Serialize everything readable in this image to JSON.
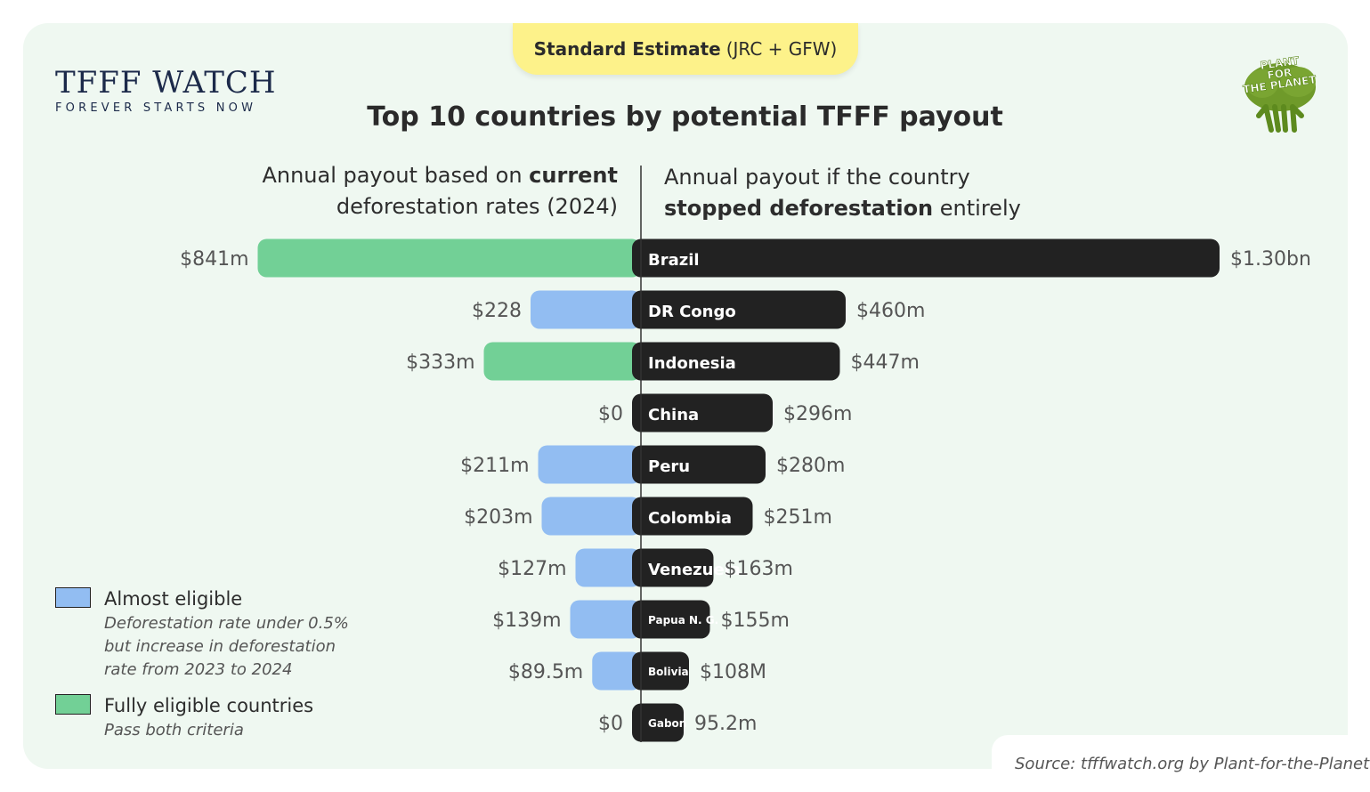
{
  "header": {
    "tag_bold": "Standard Estimate",
    "tag_rest": "(JRC + GFW)",
    "logo_main": "TFFF WATCH",
    "logo_sub": "FOREVER STARTS NOW",
    "partner_logo": {
      "line1": "PLANT",
      "line2": "FOR",
      "line3": "THE PLANET",
      "icon": "tree-people-icon"
    }
  },
  "chart_data": {
    "type": "bar",
    "title": "Top 10 countries by potential TFFF payout",
    "left_subtitle": {
      "pre": "Annual payout based on ",
      "bold": "current",
      "line2": "deforestation rates (2024)"
    },
    "right_subtitle": {
      "line1": "Annual payout if the country",
      "bold": "stopped deforestation",
      "post": " entirely"
    },
    "categories": [
      "Brazil",
      "DR Congo",
      "Indonesia",
      "China",
      "Peru",
      "Colombia",
      "Venezuela",
      "Papua N. G.",
      "Bolivia",
      "Gabon"
    ],
    "series": [
      {
        "name": "Annual payout based on current deforestation rates (2024)",
        "values": [
          841,
          228,
          333,
          0,
          211,
          203,
          127,
          139,
          89.5,
          0
        ],
        "labels": [
          "$841m",
          "$228",
          "$333m",
          "$0",
          "$211m",
          "$203m",
          "$127m",
          "$139m",
          "$89.5m",
          "$0"
        ],
        "status": [
          "fully",
          "almost",
          "fully",
          "none",
          "almost",
          "almost",
          "almost",
          "almost",
          "almost",
          "none"
        ]
      },
      {
        "name": "Annual payout if the country stopped deforestation entirely",
        "values": [
          1300,
          460,
          447,
          296,
          280,
          251,
          163,
          155,
          108,
          95.2
        ],
        "labels": [
          "$1.30bn",
          "$460m",
          "$447m",
          "$296m",
          "$280m",
          "$251m",
          "$163m",
          "$155m",
          "$108M",
          "95.2m"
        ]
      }
    ],
    "colors": {
      "fully": "#72d096",
      "almost": "#92bdf2",
      "stopped": "#222222",
      "axis": "#333333",
      "value_text": "#555555"
    },
    "legend": [
      {
        "key": "almost",
        "label": "Almost eligible",
        "desc": "Deforestation rate under 0.5% but increase in deforestation rate from 2023 to 2024"
      },
      {
        "key": "fully",
        "label": "Fully eligible countries",
        "desc": "Pass both criteria"
      }
    ],
    "legend_placement": "bottom-left"
  },
  "footer": {
    "source": "Source: tfffwatch.org by Plant-for-the-Planet"
  }
}
